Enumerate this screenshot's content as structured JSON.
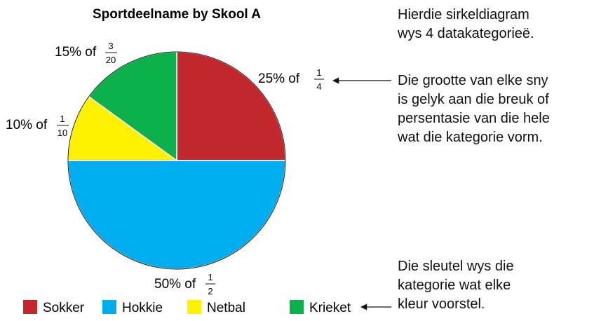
{
  "chart_data": {
    "type": "pie",
    "title": "Sportdeelname by Skool A",
    "categories": [
      "Sokker",
      "Hokkie",
      "Netbal",
      "Krieket"
    ],
    "values": [
      25,
      50,
      10,
      15
    ],
    "labels": [
      {
        "text": "25% of",
        "num": "1",
        "den": "4"
      },
      {
        "text": "50% of",
        "num": "1",
        "den": "2"
      },
      {
        "text": "10% of",
        "num": "1",
        "den": "10"
      },
      {
        "text": "15% of",
        "num": "3",
        "den": "20"
      }
    ],
    "colors": [
      "#c1272d",
      "#00aeef",
      "#fff200",
      "#0db14b"
    ],
    "legend_position": "bottom"
  },
  "annotations": {
    "top": [
      "Hierdie sirkeldiagram",
      "wys 4 datakategorieë."
    ],
    "middle": [
      "Die grootte van elke sny",
      "is gelyk aan die breuk of",
      "persentasie van die hele",
      "wat die kategorie vorm."
    ],
    "bottom": [
      "Die sleutel wys die",
      "kategorie wat elke",
      "kleur voorstel."
    ]
  }
}
